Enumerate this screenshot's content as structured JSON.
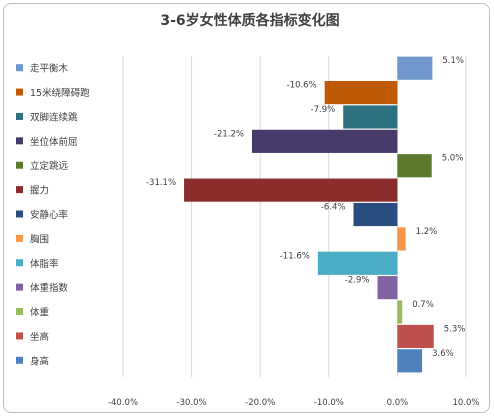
{
  "chart_data": {
    "type": "bar",
    "orientation": "horizontal",
    "title": "3-6岁女性体质各指标变化图",
    "xlim": [
      -40,
      10
    ],
    "xticks": [
      "-40.0%",
      "-30.0%",
      "-20.0%",
      "-10.0%",
      "0.0%",
      "10.0%"
    ],
    "grid": "vertical",
    "legend": "left",
    "categories": [
      "走平衡木",
      "15米绕障碍跑",
      "双脚连续跳",
      "坐位体前屈",
      "立定跳远",
      "握力",
      "安静心率",
      "胸围",
      "体脂率",
      "体重指数",
      "体重",
      "坐高",
      "身高"
    ],
    "values": [
      5.1,
      -10.6,
      -7.9,
      -21.2,
      5.0,
      -31.1,
      -6.4,
      1.2,
      -11.6,
      -2.9,
      0.7,
      5.3,
      3.6
    ],
    "labels": [
      "5.1%",
      "-10.6%",
      "-7.9%",
      "-21.2%",
      "5.0%",
      "-31.1%",
      "-6.4%",
      "1.2%",
      "-11.6%",
      "-2.9%",
      "0.7%",
      "5.3%",
      "3.6%"
    ],
    "colors": [
      "#7096cc",
      "#c05a04",
      "#2d7281",
      "#473b6a",
      "#5c7a2e",
      "#8a2d2d",
      "#2b4c7e",
      "#f79646",
      "#4bacc6",
      "#8064a2",
      "#9bbb59",
      "#c0504d",
      "#4f81bd"
    ]
  }
}
